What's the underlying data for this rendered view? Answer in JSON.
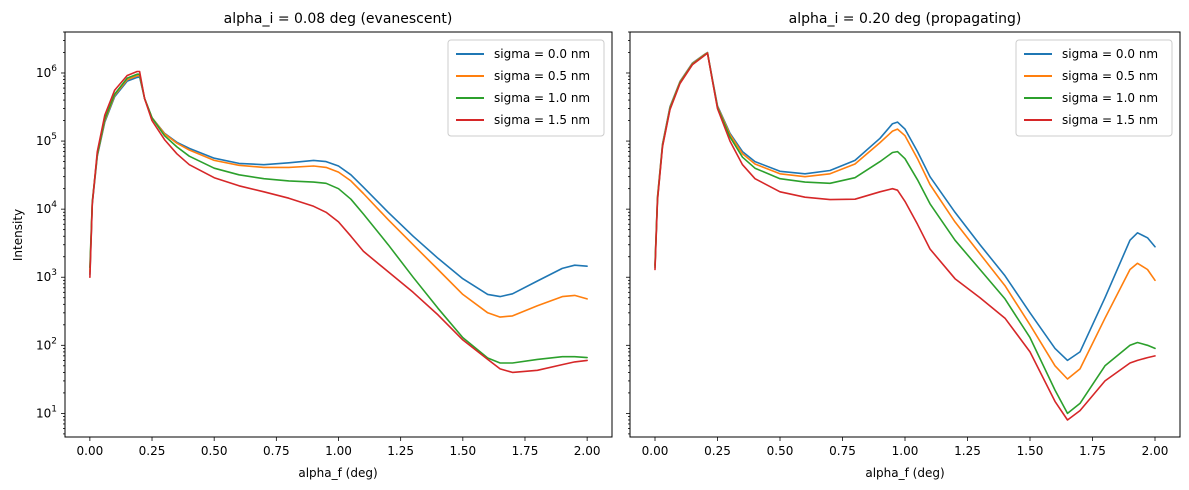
{
  "chart_data": [
    {
      "type": "line",
      "title": "alpha_i = 0.08 deg (evanescent)",
      "xlabel": "alpha_f (deg)",
      "ylabel": "Intensity",
      "xscale": "linear",
      "yscale": "log",
      "xlim": [
        -0.1,
        2.1
      ],
      "ylim": [
        4.5,
        4000000
      ],
      "xticks": [
        "0.00",
        "0.25",
        "0.50",
        "0.75",
        "1.00",
        "1.25",
        "1.50",
        "1.75",
        "2.00"
      ],
      "yticks": [
        "10^1",
        "10^2",
        "10^3",
        "10^4",
        "10^5",
        "10^6"
      ],
      "legend": "upper right",
      "grid": false,
      "series": [
        {
          "name": "sigma = 0.0 nm",
          "color": "#1f77b4",
          "x": [
            0,
            0.01,
            0.03,
            0.06,
            0.1,
            0.15,
            0.19,
            0.2,
            0.22,
            0.25,
            0.3,
            0.35,
            0.4,
            0.5,
            0.6,
            0.7,
            0.8,
            0.9,
            0.95,
            1.0,
            1.05,
            1.1,
            1.2,
            1.3,
            1.4,
            1.5,
            1.6,
            1.65,
            1.7,
            1.8,
            1.9,
            1.95,
            2.0
          ],
          "y": [
            1100,
            12000,
            60000,
            190000,
            450000,
            760000,
            860000,
            870000,
            420000,
            220000,
            130000,
            96000,
            78000,
            56000,
            47000,
            45000,
            48000,
            52000,
            50000,
            43000,
            32000,
            21000,
            9000,
            4000,
            1900,
            950,
            560,
            520,
            570,
            880,
            1350,
            1500,
            1450
          ]
        },
        {
          "name": "sigma = 0.5 nm",
          "color": "#ff7f0e",
          "x": [
            0,
            0.01,
            0.03,
            0.06,
            0.1,
            0.15,
            0.19,
            0.2,
            0.22,
            0.25,
            0.3,
            0.35,
            0.4,
            0.5,
            0.6,
            0.7,
            0.8,
            0.9,
            0.95,
            1.0,
            1.05,
            1.1,
            1.2,
            1.3,
            1.4,
            1.5,
            1.6,
            1.65,
            1.7,
            1.8,
            1.9,
            1.95,
            2.0
          ],
          "y": [
            1200,
            12500,
            62000,
            200000,
            470000,
            800000,
            910000,
            920000,
            420000,
            220000,
            128000,
            93000,
            74000,
            52000,
            44000,
            41000,
            41000,
            43000,
            41000,
            35000,
            26000,
            17000,
            7000,
            3000,
            1300,
            560,
            300,
            260,
            270,
            380,
            520,
            540,
            480
          ]
        },
        {
          "name": "sigma = 1.0 nm",
          "color": "#2ca02c",
          "x": [
            0,
            0.01,
            0.03,
            0.06,
            0.1,
            0.15,
            0.19,
            0.2,
            0.22,
            0.25,
            0.3,
            0.35,
            0.4,
            0.5,
            0.6,
            0.7,
            0.8,
            0.9,
            0.95,
            1.0,
            1.05,
            1.1,
            1.2,
            1.3,
            1.4,
            1.5,
            1.6,
            1.65,
            1.7,
            1.8,
            1.9,
            1.95,
            2.0
          ],
          "y": [
            1400,
            13000,
            64000,
            210000,
            490000,
            840000,
            960000,
            960000,
            420000,
            220000,
            120000,
            82000,
            60000,
            40000,
            32000,
            28000,
            26000,
            25000,
            24000,
            20000,
            14000,
            8500,
            3000,
            1000,
            350,
            130,
            65,
            55,
            55,
            62,
            68,
            68,
            66
          ]
        },
        {
          "name": "sigma = 1.5 nm",
          "color": "#d62728",
          "x": [
            0,
            0.01,
            0.03,
            0.06,
            0.1,
            0.15,
            0.19,
            0.2,
            0.22,
            0.25,
            0.3,
            0.35,
            0.4,
            0.5,
            0.6,
            0.7,
            0.8,
            0.9,
            0.95,
            1.0,
            1.05,
            1.1,
            1.2,
            1.3,
            1.4,
            1.5,
            1.6,
            1.65,
            1.7,
            1.8,
            1.9,
            1.95,
            2.0
          ],
          "y": [
            1000,
            12000,
            70000,
            240000,
            560000,
            920000,
            1050000,
            1050000,
            420000,
            200000,
            105000,
            65000,
            45000,
            29000,
            22000,
            18000,
            14500,
            11000,
            9000,
            6500,
            4000,
            2400,
            1200,
            600,
            280,
            120,
            62,
            45,
            40,
            43,
            52,
            57,
            60
          ]
        }
      ]
    },
    {
      "type": "line",
      "title": "alpha_i = 0.20 deg (propagating)",
      "xlabel": "alpha_f (deg)",
      "ylabel": "",
      "xscale": "linear",
      "yscale": "log",
      "xlim": [
        -0.1,
        2.1
      ],
      "ylim": [
        4.5,
        4000000
      ],
      "xticks": [
        "0.00",
        "0.25",
        "0.50",
        "0.75",
        "1.00",
        "1.25",
        "1.50",
        "1.75",
        "2.00"
      ],
      "yticks": [
        "10^1",
        "10^2",
        "10^3",
        "10^4",
        "10^5",
        "10^6"
      ],
      "legend": "upper right",
      "grid": false,
      "series": [
        {
          "name": "sigma = 0.0 nm",
          "color": "#1f77b4",
          "x": [
            0,
            0.01,
            0.03,
            0.06,
            0.1,
            0.15,
            0.2,
            0.21,
            0.23,
            0.25,
            0.3,
            0.35,
            0.4,
            0.5,
            0.6,
            0.7,
            0.8,
            0.9,
            0.95,
            0.97,
            1.0,
            1.05,
            1.1,
            1.2,
            1.3,
            1.4,
            1.5,
            1.6,
            1.65,
            1.7,
            1.8,
            1.9,
            1.93,
            1.97,
            2.0
          ],
          "y": [
            1500,
            15000,
            90000,
            320000,
            750000,
            1400000,
            1900000,
            2000000,
            800000,
            330000,
            130000,
            70000,
            50000,
            36000,
            33000,
            37000,
            52000,
            110000,
            180000,
            190000,
            150000,
            70000,
            30000,
            9000,
            3000,
            1050,
            300,
            90,
            60,
            80,
            500,
            3500,
            4500,
            3800,
            2800
          ]
        },
        {
          "name": "sigma = 0.5 nm",
          "color": "#ff7f0e",
          "x": [
            0,
            0.01,
            0.03,
            0.06,
            0.1,
            0.15,
            0.2,
            0.21,
            0.23,
            0.25,
            0.3,
            0.35,
            0.4,
            0.5,
            0.6,
            0.7,
            0.8,
            0.9,
            0.95,
            0.97,
            1.0,
            1.05,
            1.1,
            1.2,
            1.3,
            1.4,
            1.5,
            1.6,
            1.65,
            1.7,
            1.8,
            1.9,
            1.93,
            1.97,
            2.0
          ],
          "y": [
            1500,
            15000,
            88000,
            310000,
            740000,
            1380000,
            1880000,
            1980000,
            780000,
            320000,
            125000,
            65000,
            46000,
            33000,
            30000,
            33000,
            46000,
            95000,
            140000,
            150000,
            120000,
            55000,
            23000,
            6500,
            2200,
            750,
            200,
            50,
            32,
            45,
            250,
            1300,
            1600,
            1300,
            900
          ]
        },
        {
          "name": "sigma = 1.0 nm",
          "color": "#2ca02c",
          "x": [
            0,
            0.01,
            0.03,
            0.06,
            0.1,
            0.15,
            0.2,
            0.21,
            0.23,
            0.25,
            0.3,
            0.35,
            0.4,
            0.5,
            0.6,
            0.7,
            0.8,
            0.9,
            0.95,
            0.97,
            1.0,
            1.05,
            1.1,
            1.2,
            1.3,
            1.4,
            1.5,
            1.6,
            1.65,
            1.7,
            1.8,
            1.9,
            1.93,
            1.97,
            2.0
          ],
          "y": [
            1400,
            14000,
            85000,
            300000,
            720000,
            1350000,
            1850000,
            1950000,
            770000,
            310000,
            115000,
            58000,
            40000,
            28000,
            25000,
            24000,
            29000,
            50000,
            68000,
            70000,
            55000,
            27000,
            12000,
            3500,
            1300,
            480,
            130,
            22,
            10,
            14,
            50,
            100,
            110,
            100,
            90
          ]
        },
        {
          "name": "sigma = 1.5 nm",
          "color": "#d62728",
          "x": [
            0,
            0.01,
            0.03,
            0.06,
            0.1,
            0.15,
            0.2,
            0.21,
            0.23,
            0.25,
            0.3,
            0.35,
            0.4,
            0.5,
            0.6,
            0.7,
            0.8,
            0.9,
            0.95,
            0.97,
            1.0,
            1.05,
            1.1,
            1.2,
            1.3,
            1.4,
            1.5,
            1.6,
            1.65,
            1.7,
            1.8,
            1.9,
            1.93,
            1.97,
            2.0
          ],
          "y": [
            1300,
            13500,
            82000,
            290000,
            700000,
            1330000,
            1830000,
            1950000,
            760000,
            300000,
            100000,
            45000,
            28000,
            18000,
            15000,
            13800,
            14000,
            18000,
            20000,
            19000,
            13000,
            6000,
            2600,
            950,
            500,
            250,
            80,
            15,
            8,
            11,
            30,
            55,
            60,
            66,
            70
          ]
        }
      ]
    }
  ]
}
